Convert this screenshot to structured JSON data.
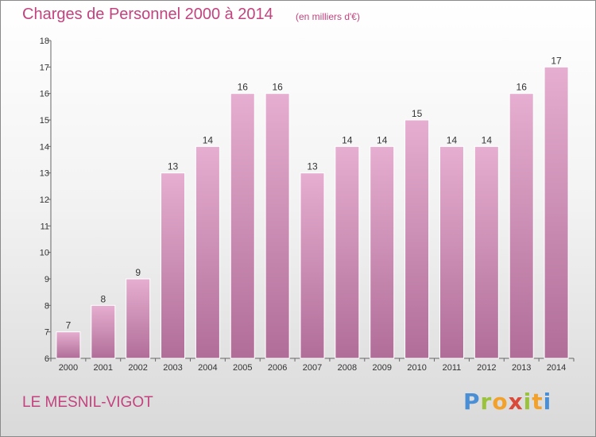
{
  "title": "Charges de Personnel 2000 à 2014",
  "subtitle": "(en milliers d'€)",
  "commune": "LE MESNIL-VIGOT",
  "logo": {
    "letters": [
      {
        "ch": "P",
        "color": "#4a8fd6"
      },
      {
        "ch": "r",
        "color": "#9bc23c"
      },
      {
        "ch": "o",
        "color": "#f2a12a"
      },
      {
        "ch": "x",
        "color": "#d94a3a"
      },
      {
        "ch": "i",
        "color": "#9bc23c"
      },
      {
        "ch": "t",
        "color": "#f2a12a"
      },
      {
        "ch": "i",
        "color": "#4a8fd6"
      }
    ]
  },
  "colors": {
    "bar_top": "#e6aed0",
    "bar_bottom": "#b06d98",
    "bar_stroke": "#ffffff",
    "axis": "#666666"
  },
  "chart_data": {
    "type": "bar",
    "title": "Charges de Personnel 2000 à 2014",
    "subtitle": "(en milliers d'€)",
    "categories": [
      "2000",
      "2001",
      "2002",
      "2003",
      "2004",
      "2005",
      "2006",
      "2007",
      "2008",
      "2009",
      "2010",
      "2011",
      "2012",
      "2013",
      "2014"
    ],
    "values": [
      7,
      8,
      9,
      13,
      14,
      16,
      16,
      13,
      14,
      14,
      15,
      14,
      14,
      16,
      17
    ],
    "ylim": [
      6,
      18
    ],
    "yticks": [
      6,
      7,
      8,
      9,
      10,
      11,
      12,
      13,
      14,
      15,
      16,
      17,
      18
    ],
    "grid": false,
    "xlabel": "",
    "ylabel": ""
  }
}
